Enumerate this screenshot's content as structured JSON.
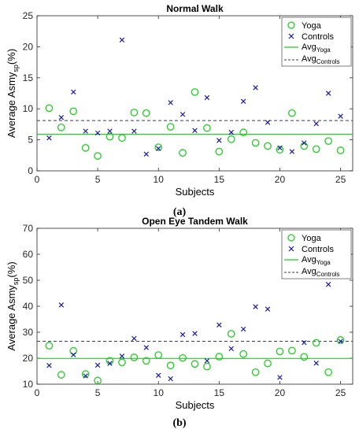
{
  "captions": [
    "(a)",
    "(b)"
  ],
  "legend_labels": {
    "yoga": "Yoga",
    "controls": "Controls",
    "avg_base": "Avg",
    "avg_yoga_sub": "Yoga",
    "avg_controls_sub": "Controls"
  },
  "colors": {
    "yoga": "#22cc22",
    "controls": "#1a1aa0",
    "avg_controls": "#3a3a5a"
  },
  "chart_data": [
    {
      "type": "scatter",
      "title": "Normal Walk",
      "xlabel": "Subjects",
      "ylabel_main": "Average Asmy",
      "ylabel_sub": "sp",
      "ylabel_tail": "(%)",
      "xlim": [
        0,
        26
      ],
      "ylim": [
        0,
        25
      ],
      "xticks": [
        0,
        5,
        10,
        15,
        20,
        25
      ],
      "yticks": [
        0,
        5,
        10,
        15,
        20,
        25
      ],
      "legend_position": "top-right",
      "x": [
        1,
        2,
        3,
        4,
        5,
        6,
        7,
        8,
        9,
        10,
        11,
        12,
        13,
        14,
        15,
        16,
        17,
        18,
        19,
        20,
        21,
        22,
        23,
        24,
        25
      ],
      "series": [
        {
          "name": "Yoga",
          "marker": "circle",
          "values": [
            10.1,
            7.0,
            9.6,
            3.7,
            2.4,
            5.5,
            5.3,
            9.4,
            9.3,
            3.8,
            7.1,
            2.9,
            12.7,
            6.9,
            3.1,
            5.1,
            6.2,
            4.5,
            4.0,
            3.4,
            9.3,
            4.0,
            3.5,
            4.8,
            3.3
          ]
        },
        {
          "name": "Controls",
          "marker": "x",
          "values": [
            5.3,
            8.6,
            12.7,
            6.4,
            6.1,
            6.4,
            21.1,
            6.4,
            2.7,
            3.6,
            11.0,
            9.1,
            6.5,
            11.8,
            4.9,
            6.2,
            11.2,
            13.4,
            7.8,
            3.7,
            3.1,
            4.5,
            7.6,
            12.5,
            8.8
          ]
        }
      ],
      "averages": {
        "yoga": 5.9,
        "controls": 8.1
      }
    },
    {
      "type": "scatter",
      "title": "Open Eye Tandem Walk",
      "xlabel": "Subjects",
      "ylabel_main": "Average Asmy",
      "ylabel_sub": "sp",
      "ylabel_tail": "(%)",
      "xlim": [
        0,
        26
      ],
      "ylim": [
        10,
        70
      ],
      "xticks": [
        0,
        5,
        10,
        15,
        20,
        25
      ],
      "yticks": [
        10,
        20,
        30,
        40,
        50,
        60,
        70
      ],
      "legend_position": "top-right",
      "x": [
        1,
        2,
        3,
        4,
        5,
        6,
        7,
        8,
        9,
        10,
        11,
        12,
        13,
        14,
        15,
        16,
        17,
        18,
        19,
        20,
        21,
        22,
        23,
        24,
        25
      ],
      "series": [
        {
          "name": "Yoga",
          "marker": "circle",
          "values": [
            24.8,
            13.6,
            22.8,
            13.9,
            11.4,
            19.0,
            18.4,
            20.3,
            19.0,
            21.2,
            17.2,
            20.1,
            17.8,
            16.8,
            20.6,
            29.4,
            21.6,
            14.6,
            18.0,
            22.6,
            22.9,
            20.5,
            25.9,
            14.6,
            27.0
          ]
        },
        {
          "name": "Controls",
          "marker": "x",
          "values": [
            17.2,
            40.5,
            21.3,
            13.2,
            17.3,
            18.0,
            20.8,
            27.6,
            24.1,
            13.4,
            12.1,
            29.1,
            29.5,
            19.0,
            32.8,
            23.7,
            31.2,
            39.8,
            38.9,
            12.6,
            60.3,
            26.0,
            18.1,
            48.4,
            26.5
          ]
        }
      ],
      "averages": {
        "yoga": 19.9,
        "controls": 26.5
      }
    }
  ]
}
